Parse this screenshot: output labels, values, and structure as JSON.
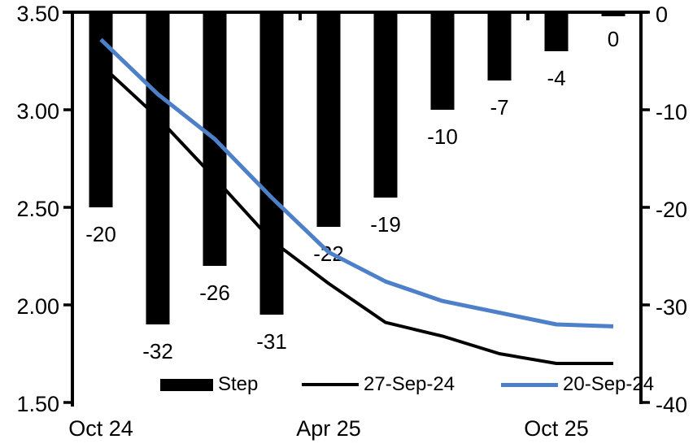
{
  "chart_data": {
    "type": "combo-bar-line",
    "title": "",
    "n_categories": 10,
    "background": "#ffffff",
    "grid": "off",
    "legend_position": "bottom",
    "x_axis": {
      "labels": [
        {
          "category_index": 0,
          "text": "Oct 24"
        },
        {
          "category_index": 4,
          "text": "Apr 25"
        },
        {
          "category_index": 8,
          "text": "Oct 25"
        }
      ],
      "tick_boundaries_after_category": [
        3,
        7
      ]
    },
    "left_axis": {
      "min": 1.5,
      "max": 3.5,
      "tick_values": [
        3.5,
        3.0,
        2.5,
        2.0,
        1.5
      ],
      "tick_labels": [
        "3.50",
        "3.00",
        "2.50",
        "2.00",
        "1.50"
      ]
    },
    "right_axis": {
      "min": -40,
      "max": 0,
      "tick_values": [
        0,
        -10,
        -20,
        -30,
        -40
      ],
      "tick_labels": [
        "0",
        "-10",
        "-20",
        "-30",
        "-40"
      ]
    },
    "bars": {
      "name": "Step",
      "axis": "right",
      "color": "#000000",
      "values": [
        -20,
        -32,
        -26,
        -31,
        -22,
        -19,
        -10,
        -7,
        -4,
        0
      ],
      "data_labels": [
        "-20",
        "-32",
        "-26",
        "-31",
        "-22",
        "-19",
        "-10",
        "-7",
        "-4",
        "0"
      ]
    },
    "lines": [
      {
        "name": "27-Sep-24",
        "axis": "left",
        "color": "#000000",
        "stroke_width": 4,
        "values": [
          3.23,
          2.96,
          2.65,
          2.33,
          2.11,
          1.91,
          1.84,
          1.75,
          1.7,
          1.7
        ]
      },
      {
        "name": "20-Sep-24",
        "axis": "left",
        "color": "#4d80c9",
        "stroke_width": 5,
        "values": [
          3.36,
          3.08,
          2.85,
          2.55,
          2.27,
          2.12,
          2.02,
          1.96,
          1.9,
          1.89
        ]
      }
    ]
  }
}
